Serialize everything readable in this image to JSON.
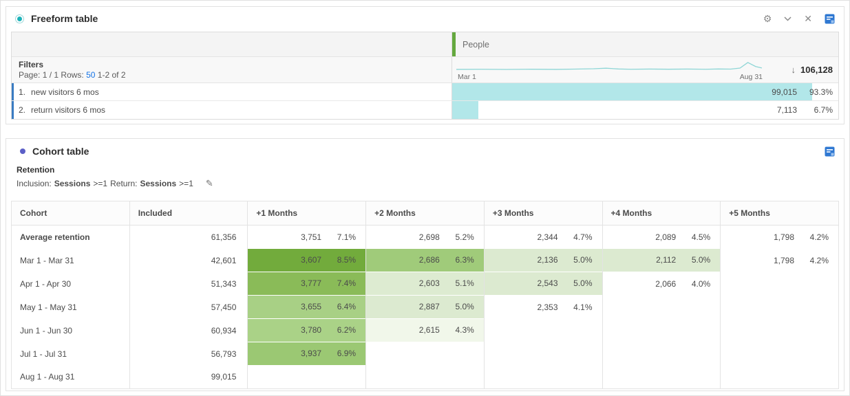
{
  "colors": {
    "freeform_accent_teal": "#1cb2b8",
    "cohort_accent_indigo": "#5b5fc7",
    "bar_teal": "#b2e7e9",
    "sparkline_teal": "#8ed6d6",
    "link_blue": "#1473e6",
    "row_accent_blue": "#3a7cc2",
    "column_grip_green": "#64a83e",
    "datasource_icon_blue": "#2f78d2"
  },
  "freeform": {
    "title": "Freeform table",
    "toolbar": {
      "icons": [
        "settings-gear",
        "chevron-down",
        "close",
        "data-source"
      ]
    },
    "column_header": "People",
    "filters": {
      "label": "Filters",
      "page_label": "Page:",
      "page_value": "1 / 1",
      "rows_label": "Rows:",
      "rows_value": "50",
      "range_text": "1-2 of 2"
    },
    "sparkline": {
      "start_label": "Mar 1",
      "end_label": "Aug 31",
      "sort_arrow": "↓",
      "total": "106,128",
      "points": [
        [
          0,
          15.5
        ],
        [
          8,
          15.3
        ],
        [
          16,
          15.6
        ],
        [
          24,
          15.2
        ],
        [
          32,
          15.5
        ],
        [
          38,
          15.0
        ],
        [
          44,
          14.4
        ],
        [
          48,
          13.4
        ],
        [
          52,
          14.8
        ],
        [
          56,
          15.3
        ],
        [
          62,
          14.9
        ],
        [
          68,
          15.2
        ],
        [
          74,
          14.9
        ],
        [
          80,
          15.3
        ],
        [
          84,
          14.8
        ],
        [
          88,
          15.0
        ],
        [
          91,
          13.2
        ],
        [
          93.5,
          3.5
        ],
        [
          96,
          10.5
        ],
        [
          98,
          13.0
        ]
      ]
    },
    "rows": [
      {
        "rank": "1.",
        "name": "new visitors 6 mos",
        "value": "99,015",
        "pct": "93.3%"
      },
      {
        "rank": "2.",
        "name": "return visitors 6 mos",
        "value": "7,113",
        "pct": "6.7%"
      }
    ]
  },
  "cohort": {
    "title": "Cohort table",
    "subtitle": "Retention",
    "criteria": {
      "inclusion_label": "Inclusion:",
      "inclusion_metric": "Sessions",
      "inclusion_op": ">=1",
      "return_label": "Return:",
      "return_metric": "Sessions",
      "return_op": ">=1"
    },
    "table": {
      "headers": [
        "Cohort",
        "Included",
        "+1 Months",
        "+2 Months",
        "+3 Months",
        "+4 Months",
        "+5 Months"
      ],
      "rows": [
        {
          "label": "Average retention",
          "bold": true,
          "included": "61,356",
          "cells": [
            {
              "v": "3,751",
              "p": "7.1%",
              "bg": ""
            },
            {
              "v": "2,698",
              "p": "5.2%",
              "bg": ""
            },
            {
              "v": "2,344",
              "p": "4.7%",
              "bg": ""
            },
            {
              "v": "2,089",
              "p": "4.5%",
              "bg": ""
            },
            {
              "v": "1,798",
              "p": "4.2%",
              "bg": ""
            }
          ]
        },
        {
          "label": "Mar 1 - Mar 31",
          "bold": false,
          "included": "42,601",
          "cells": [
            {
              "v": "3,607",
              "p": "8.5%",
              "bg": "#72ab3c"
            },
            {
              "v": "2,686",
              "p": "6.3%",
              "bg": "#a0cb7a"
            },
            {
              "v": "2,136",
              "p": "5.0%",
              "bg": "#dcead0"
            },
            {
              "v": "2,112",
              "p": "5.0%",
              "bg": "#dcead0"
            },
            {
              "v": "1,798",
              "p": "4.2%",
              "bg": ""
            }
          ]
        },
        {
          "label": "Apr 1 - Apr 30",
          "bold": false,
          "included": "51,343",
          "cells": [
            {
              "v": "3,777",
              "p": "7.4%",
              "bg": "#8abb58"
            },
            {
              "v": "2,603",
              "p": "5.1%",
              "bg": "#ddebd1"
            },
            {
              "v": "2,543",
              "p": "5.0%",
              "bg": "#dcead0"
            },
            {
              "v": "2,066",
              "p": "4.0%",
              "bg": ""
            },
            {
              "v": "",
              "p": "",
              "bg": ""
            }
          ]
        },
        {
          "label": "May 1 - May 31",
          "bold": false,
          "included": "57,450",
          "cells": [
            {
              "v": "3,655",
              "p": "6.4%",
              "bg": "#a8d085"
            },
            {
              "v": "2,887",
              "p": "5.0%",
              "bg": "#dcead0"
            },
            {
              "v": "2,353",
              "p": "4.1%",
              "bg": ""
            },
            {
              "v": "",
              "p": "",
              "bg": ""
            },
            {
              "v": "",
              "p": "",
              "bg": ""
            }
          ]
        },
        {
          "label": "Jun 1 - Jun 30",
          "bold": false,
          "included": "60,934",
          "cells": [
            {
              "v": "3,780",
              "p": "6.2%",
              "bg": "#aad287"
            },
            {
              "v": "2,615",
              "p": "4.3%",
              "bg": "#f1f7ea"
            },
            {
              "v": "",
              "p": "",
              "bg": ""
            },
            {
              "v": "",
              "p": "",
              "bg": ""
            },
            {
              "v": "",
              "p": "",
              "bg": ""
            }
          ]
        },
        {
          "label": "Jul 1 - Jul 31",
          "bold": false,
          "included": "56,793",
          "cells": [
            {
              "v": "3,937",
              "p": "6.9%",
              "bg": "#9bc873"
            },
            {
              "v": "",
              "p": "",
              "bg": ""
            },
            {
              "v": "",
              "p": "",
              "bg": ""
            },
            {
              "v": "",
              "p": "",
              "bg": ""
            },
            {
              "v": "",
              "p": "",
              "bg": ""
            }
          ]
        },
        {
          "label": "Aug 1 - Aug 31",
          "bold": false,
          "included": "99,015",
          "cells": [
            {
              "v": "",
              "p": "",
              "bg": ""
            },
            {
              "v": "",
              "p": "",
              "bg": ""
            },
            {
              "v": "",
              "p": "",
              "bg": ""
            },
            {
              "v": "",
              "p": "",
              "bg": ""
            },
            {
              "v": "",
              "p": "",
              "bg": ""
            }
          ]
        }
      ]
    }
  }
}
